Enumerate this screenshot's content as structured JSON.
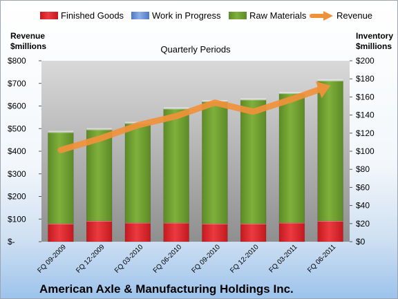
{
  "chart_data": {
    "type": "bar",
    "subtitle": "Quarterly Periods",
    "footer": "American Axle & Manufacturing Holdings Inc.",
    "left_axis": {
      "label_line1": "Revenue",
      "label_line2": "$millions",
      "range": [
        0,
        800
      ],
      "ticks": [
        "$-",
        "$100",
        "$200",
        "$300",
        "$400",
        "$500",
        "$600",
        "$700",
        "$800"
      ]
    },
    "right_axis": {
      "label_line1": "Inventory",
      "label_line2": "$millions",
      "range": [
        0,
        200
      ],
      "ticks": [
        "$0",
        "$20",
        "$40",
        "$60",
        "$80",
        "$100",
        "$120",
        "$140",
        "$160",
        "$180",
        "$200"
      ]
    },
    "categories": [
      "FQ 09-2009",
      "FQ 12-2009",
      "FQ 03-2010",
      "FQ 06-2010",
      "FQ 09-2010",
      "FQ 12-2010",
      "FQ 03-2011",
      "FQ 06-2011"
    ],
    "legend_position": "top",
    "grid": false,
    "series": [
      {
        "name": "Finished Goods",
        "axis": "right",
        "kind": "stacked-bar",
        "color": "#e0262b",
        "values": [
          20,
          23,
          21,
          21,
          20,
          20,
          21,
          23
        ]
      },
      {
        "name": "Work in Progress",
        "axis": "right",
        "kind": "stacked-bar",
        "color": "#6b93d6",
        "values": [
          0,
          0,
          0,
          0,
          0,
          0,
          0,
          0
        ]
      },
      {
        "name": "Raw Materials",
        "axis": "right",
        "kind": "stacked-bar",
        "color": "#72a035",
        "values": [
          101,
          101,
          110,
          126,
          135,
          137,
          143,
          155
        ]
      },
      {
        "name": "Revenue",
        "axis": "left",
        "kind": "line",
        "color": "#f0913a",
        "values": [
          405,
          455,
          515,
          555,
          615,
          575,
          630,
          690
        ]
      }
    ]
  }
}
